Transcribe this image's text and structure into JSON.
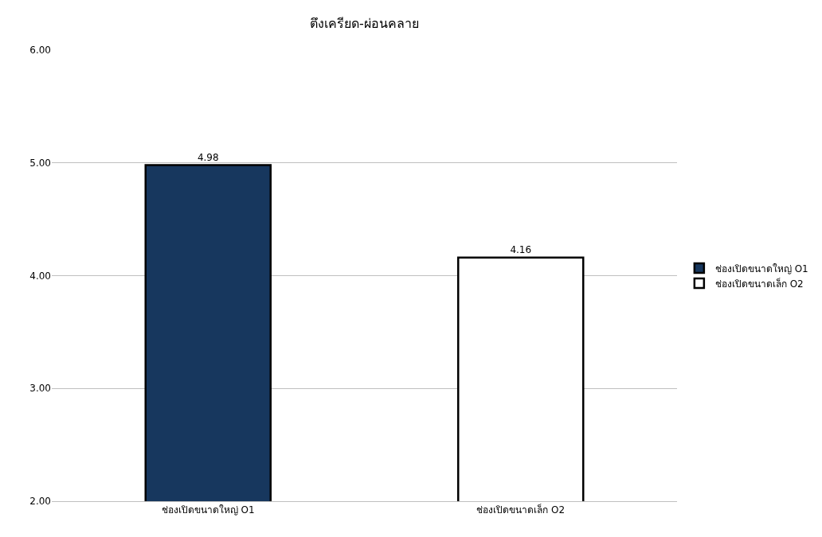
{
  "chart_data": {
    "type": "bar",
    "title": "ตึงเครียด-ผ่อนคลาย",
    "categories": [
      "ช่องเปิดขนาดใหญ่ O1",
      "ช่องเปิดขนาดเล็ก O2"
    ],
    "series": [
      {
        "name": "ช่องเปิดขนาดใหญ่ O1",
        "color": "#17375e",
        "values": [
          4.98,
          null
        ]
      },
      {
        "name": "ช่องเปิดขนาดเล็ก O2",
        "color": "#ffffff",
        "values": [
          null,
          4.16
        ]
      }
    ],
    "ylim": [
      2,
      6
    ],
    "yticks": [
      {
        "value": 2,
        "label": "2.00"
      },
      {
        "value": 3,
        "label": "3.00"
      },
      {
        "value": 4,
        "label": "4.00"
      },
      {
        "value": 5,
        "label": "5.00"
      },
      {
        "value": 6,
        "label": "6.00"
      }
    ],
    "grid": "y",
    "legend": "right",
    "data_labels": true
  }
}
